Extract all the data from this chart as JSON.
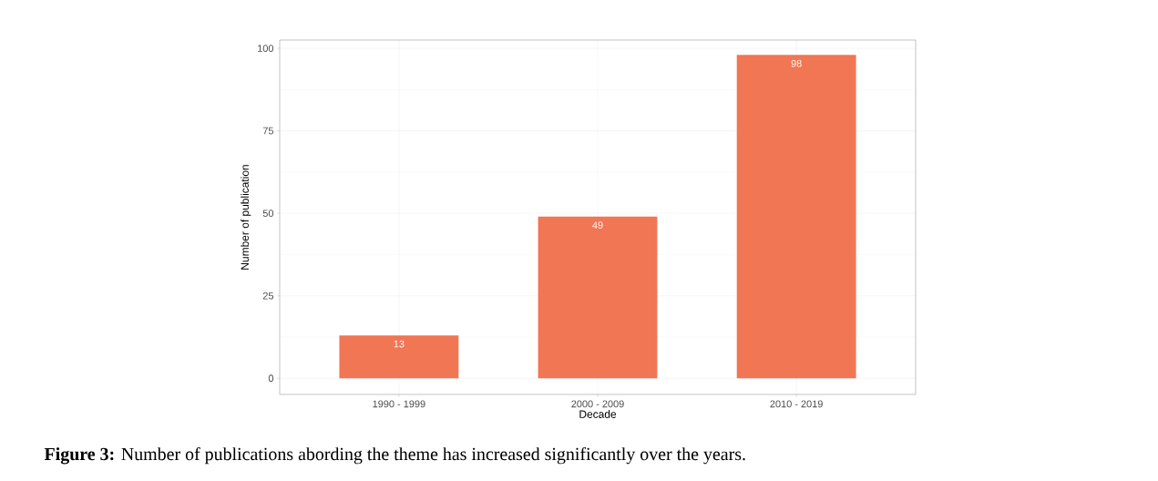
{
  "chart_data": {
    "type": "bar",
    "xlabel": "Decade",
    "ylabel": "Number of publication",
    "categories": [
      "1990 - 1999",
      "2000 - 2009",
      "2010 - 2019"
    ],
    "values": [
      13,
      49,
      98
    ],
    "color": "#f07654",
    "ylim": [
      -4.9,
      102.5
    ],
    "yticks": [
      0,
      25,
      50,
      75,
      100
    ],
    "grid": true,
    "data_labels": true,
    "annotations": [
      "**Figure 3:** Number of publications abording the theme has increased significantly over the years."
    ]
  }
}
